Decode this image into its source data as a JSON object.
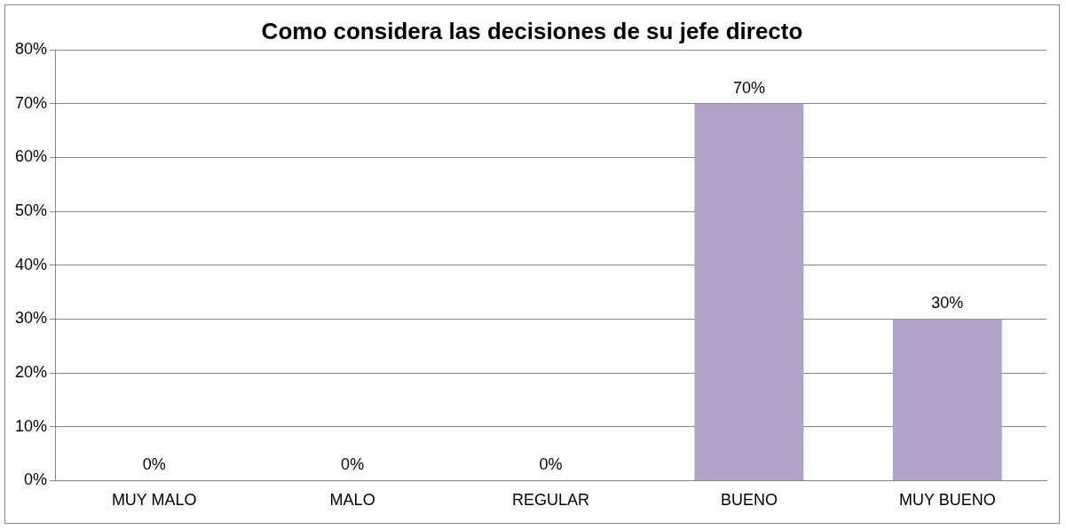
{
  "chart_data": {
    "type": "bar",
    "title": "Como considera las decisiones de su jefe directo",
    "categories": [
      "MUY MALO",
      "MALO",
      "REGULAR",
      "BUENO",
      "MUY BUENO"
    ],
    "values": [
      0,
      0,
      0,
      70,
      30
    ],
    "color": "#b3a2c7",
    "value_labels": [
      "0%",
      "0%",
      "0%",
      "70%",
      "30%"
    ],
    "ylim": [
      0,
      80
    ],
    "yticks": [
      {
        "value": 0,
        "label": "0%"
      },
      {
        "value": 10,
        "label": "10%"
      },
      {
        "value": 20,
        "label": "20%"
      },
      {
        "value": 30,
        "label": "30%"
      },
      {
        "value": 40,
        "label": "40%"
      },
      {
        "value": 50,
        "label": "50%"
      },
      {
        "value": 60,
        "label": "60%"
      },
      {
        "value": 70,
        "label": "70%"
      },
      {
        "value": 80,
        "label": "80%"
      }
    ],
    "grid": "y",
    "legend": false
  }
}
